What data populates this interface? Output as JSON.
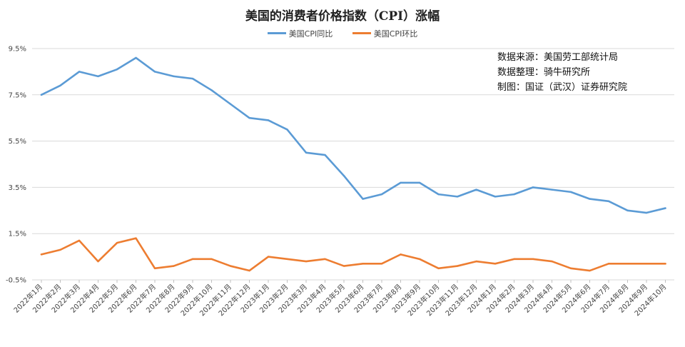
{
  "chart_data": {
    "type": "line",
    "title": "美国的消费者价格指数（CPI）涨幅",
    "xlabel": "",
    "ylabel": "",
    "categories": [
      "2022年1月",
      "2022年2月",
      "2022年3月",
      "2022年4月",
      "2022年5月",
      "2022年6月",
      "2022年7月",
      "2022年8月",
      "2022年9月",
      "2022年10月",
      "2022年11月",
      "2022年12月",
      "2023年1月",
      "2023年2月",
      "2023年3月",
      "2023年4月",
      "2023年5月",
      "2023年6月",
      "2023年7月",
      "2023年8月",
      "2023年9月",
      "2023年10月",
      "2023年11月",
      "2023年12月",
      "2024年1月",
      "2024年2月",
      "2024年3月",
      "2024年4月",
      "2024年5月",
      "2024年6月",
      "2024年7月",
      "2024年8月",
      "2024年9月",
      "2024年10月"
    ],
    "series": [
      {
        "name": "美国CPI同比",
        "color": "#5b9bd5",
        "values": [
          7.5,
          7.9,
          8.5,
          8.3,
          8.6,
          9.1,
          8.5,
          8.3,
          8.2,
          7.7,
          7.1,
          6.5,
          6.4,
          6.0,
          5.0,
          4.9,
          4.0,
          3.0,
          3.2,
          3.7,
          3.7,
          3.2,
          3.1,
          3.4,
          3.1,
          3.2,
          3.5,
          3.4,
          3.3,
          3.0,
          2.9,
          2.5,
          2.4,
          2.6
        ]
      },
      {
        "name": "美国CPI环比",
        "color": "#ed7d31",
        "values": [
          0.6,
          0.8,
          1.2,
          0.3,
          1.1,
          1.3,
          0.0,
          0.1,
          0.4,
          0.4,
          0.1,
          -0.1,
          0.5,
          0.4,
          0.3,
          0.4,
          0.1,
          0.2,
          0.2,
          0.6,
          0.4,
          0.0,
          0.1,
          0.3,
          0.2,
          0.4,
          0.4,
          0.3,
          0.0,
          -0.1,
          0.2,
          0.2,
          0.2,
          0.2
        ]
      }
    ],
    "yticks": [
      "-0.5%",
      "1.5%",
      "3.5%",
      "5.5%",
      "7.5%",
      "9.5%"
    ],
    "ylim": [
      -0.5,
      9.5
    ],
    "grid": true,
    "legend_position": "top-center"
  },
  "notes": [
    "数据来源：美国劳工部统计局",
    "数据整理：骑牛研究所",
    "制图：国证（武汉）证券研究院"
  ]
}
